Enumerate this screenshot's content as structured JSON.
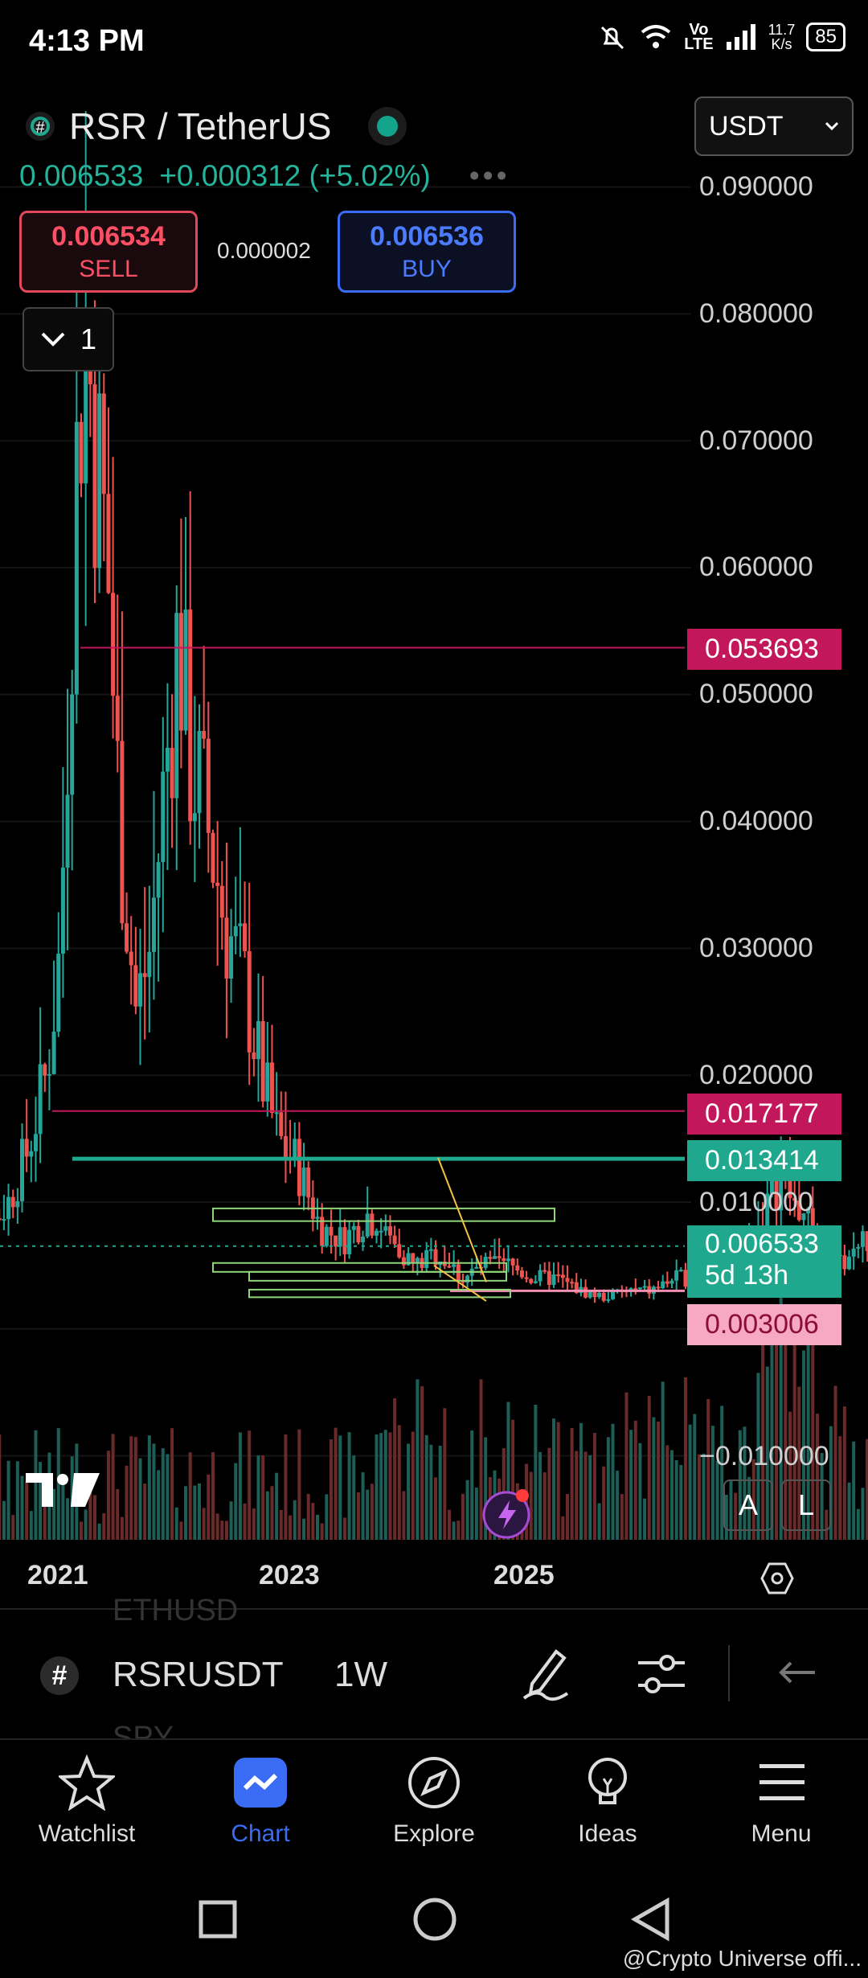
{
  "status": {
    "time": "4:13 PM",
    "net_speed_value": "11.7",
    "net_speed_unit": "K/s",
    "volte_top": "Vo",
    "volte_bottom": "LTE",
    "battery": "85"
  },
  "header": {
    "title": "RSR / TetherUS",
    "last_price": "0.006533",
    "change": "+0.000312 (+5.02%)"
  },
  "trade": {
    "sell_price": "0.006534",
    "sell_label": "SELL",
    "spread": "0.000002",
    "buy_price": "0.006536",
    "buy_label": "BUY"
  },
  "collapse_count": "1",
  "currency_selector": "USDT",
  "axis_labels": [
    "0.090000",
    "0.080000",
    "0.070000",
    "0.060000",
    "0.050000",
    "0.040000",
    "0.030000",
    "0.020000",
    "0.010000",
    "−0.010000"
  ],
  "price_tags": {
    "level1": "0.053693",
    "level2": "0.017177",
    "level3": "0.013414",
    "current": "0.006533",
    "countdown": "5d 13h",
    "level4": "0.003006"
  },
  "colors": {
    "up": "#26a69a",
    "down": "#ef5350",
    "tag_red": "#c2185b",
    "tag_green": "#1fa88e",
    "tag_pink": "#f48fb1",
    "accent": "#3b6cf5",
    "line_yellow": "#f5c242",
    "zone_green": "#8fd67a"
  },
  "x_labels": [
    "2021",
    "2023",
    "2025"
  ],
  "chart_buttons": {
    "auto": "A",
    "log": "L"
  },
  "chart_data": {
    "type": "candlestick",
    "symbol": "RSRUSDT",
    "interval": "1W",
    "ylim": [
      -0.012,
      0.095
    ],
    "x_ticks": [
      "2021",
      "2023",
      "2025"
    ],
    "horizontal_levels": [
      0.053693,
      0.017177,
      0.013414,
      0.003006
    ],
    "last_price": 0.006533,
    "close_path": [
      [
        2020.55,
        0.016
      ],
      [
        2020.62,
        0.012
      ],
      [
        2020.7,
        0.008
      ],
      [
        2020.78,
        0.01
      ],
      [
        2020.86,
        0.014
      ],
      [
        2020.94,
        0.02
      ],
      [
        2021.0,
        0.03
      ],
      [
        2021.05,
        0.06
      ],
      [
        2021.1,
        0.08
      ],
      [
        2021.15,
        0.07
      ],
      [
        2021.2,
        0.06
      ],
      [
        2021.25,
        0.04
      ],
      [
        2021.32,
        0.025
      ],
      [
        2021.38,
        0.03
      ],
      [
        2021.45,
        0.045
      ],
      [
        2021.5,
        0.055
      ],
      [
        2021.55,
        0.045
      ],
      [
        2021.62,
        0.04
      ],
      [
        2021.7,
        0.032
      ],
      [
        2021.78,
        0.027
      ],
      [
        2021.85,
        0.02
      ],
      [
        2021.92,
        0.015
      ],
      [
        2022.0,
        0.013
      ],
      [
        2022.1,
        0.008
      ],
      [
        2022.2,
        0.007
      ],
      [
        2022.3,
        0.009
      ],
      [
        2022.4,
        0.007
      ],
      [
        2022.5,
        0.005
      ],
      [
        2022.6,
        0.006
      ],
      [
        2022.7,
        0.004
      ],
      [
        2022.8,
        0.005
      ],
      [
        2022.9,
        0.005
      ],
      [
        2023.0,
        0.004
      ],
      [
        2023.1,
        0.004
      ],
      [
        2023.2,
        0.003
      ],
      [
        2023.3,
        0.0025
      ],
      [
        2023.4,
        0.003
      ],
      [
        2023.5,
        0.003
      ],
      [
        2023.6,
        0.004
      ],
      [
        2023.7,
        0.004
      ],
      [
        2023.8,
        0.005
      ],
      [
        2023.9,
        0.006
      ],
      [
        2024.0,
        0.01
      ],
      [
        2024.05,
        0.012
      ],
      [
        2024.1,
        0.01
      ],
      [
        2024.15,
        0.009
      ],
      [
        2024.2,
        0.007
      ],
      [
        2024.25,
        0.006
      ],
      [
        2024.3,
        0.005
      ],
      [
        2024.35,
        0.006
      ],
      [
        2024.4,
        0.007
      ],
      [
        2024.45,
        0.0065
      ]
    ]
  },
  "toolbar": {
    "symbol": "RSRUSDT",
    "interval": "1W",
    "ghost_above": "ETHUSD",
    "ghost_below": "SPY"
  },
  "nav": [
    {
      "label": "Watchlist",
      "icon": "star-icon"
    },
    {
      "label": "Chart",
      "icon": "chart-icon"
    },
    {
      "label": "Explore",
      "icon": "compass-icon"
    },
    {
      "label": "Ideas",
      "icon": "lightbulb-icon"
    },
    {
      "label": "Menu",
      "icon": "hamburger-icon"
    }
  ],
  "credit": "@Crypto Universe offi..."
}
